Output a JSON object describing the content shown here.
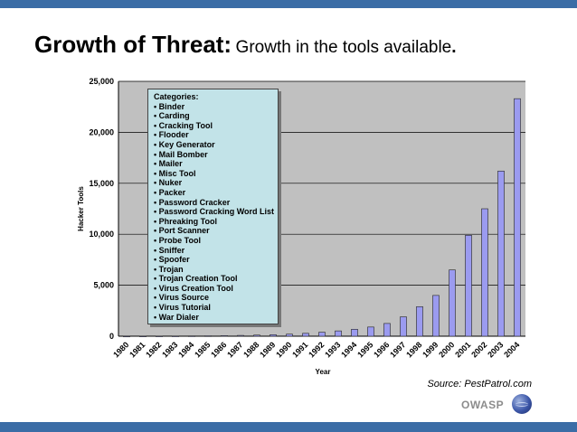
{
  "header": {
    "title_main": "Growth of Threat:",
    "title_sub": "Growth in the tools available",
    "title_period": "."
  },
  "source": "Source: PestPatrol.com",
  "logo_text": "OWASP",
  "colors": {
    "bars": "#9b9bf0",
    "plot_background": "#c0c0c0",
    "legend_background": "#c2e3e8",
    "banner": "#3b6da6"
  },
  "legend": {
    "heading": "Categories:",
    "items": [
      "Binder",
      "Carding",
      "Cracking Tool",
      "Flooder",
      "Key Generator",
      "Mail Bomber",
      "Mailer",
      "Misc Tool",
      "Nuker",
      "Packer",
      "Password Cracker",
      "Password Cracking Word List",
      "Phreaking Tool",
      "Port Scanner",
      "Probe Tool",
      "Sniffer",
      "Spoofer",
      "Trojan",
      "Trojan Creation Tool",
      "Virus Creation Tool",
      "Virus Source",
      "Virus Tutorial",
      "War Dialer"
    ]
  },
  "chart_data": {
    "type": "bar",
    "xlabel": "Year",
    "ylabel": "Hacker Tools",
    "categories": [
      "1980",
      "1981",
      "1982",
      "1983",
      "1984",
      "1985",
      "1986",
      "1987",
      "1988",
      "1989",
      "1990",
      "1991",
      "1992",
      "1993",
      "1994",
      "1995",
      "1996",
      "1997",
      "1998",
      "1999",
      "2000",
      "2001",
      "2002",
      "2003",
      "2004"
    ],
    "values": [
      5,
      10,
      15,
      20,
      30,
      40,
      60,
      80,
      110,
      150,
      200,
      280,
      390,
      520,
      680,
      900,
      1250,
      1900,
      2900,
      4000,
      6500,
      9900,
      12500,
      16200,
      23300
    ],
    "ylim": [
      0,
      25000
    ],
    "yticks": [
      0,
      5000,
      10000,
      15000,
      20000,
      25000
    ],
    "ytick_labels": [
      "0",
      "5,000",
      "10,000",
      "15,000",
      "20,000",
      "25,000"
    ],
    "grid": true,
    "legend_position": "top-left"
  }
}
